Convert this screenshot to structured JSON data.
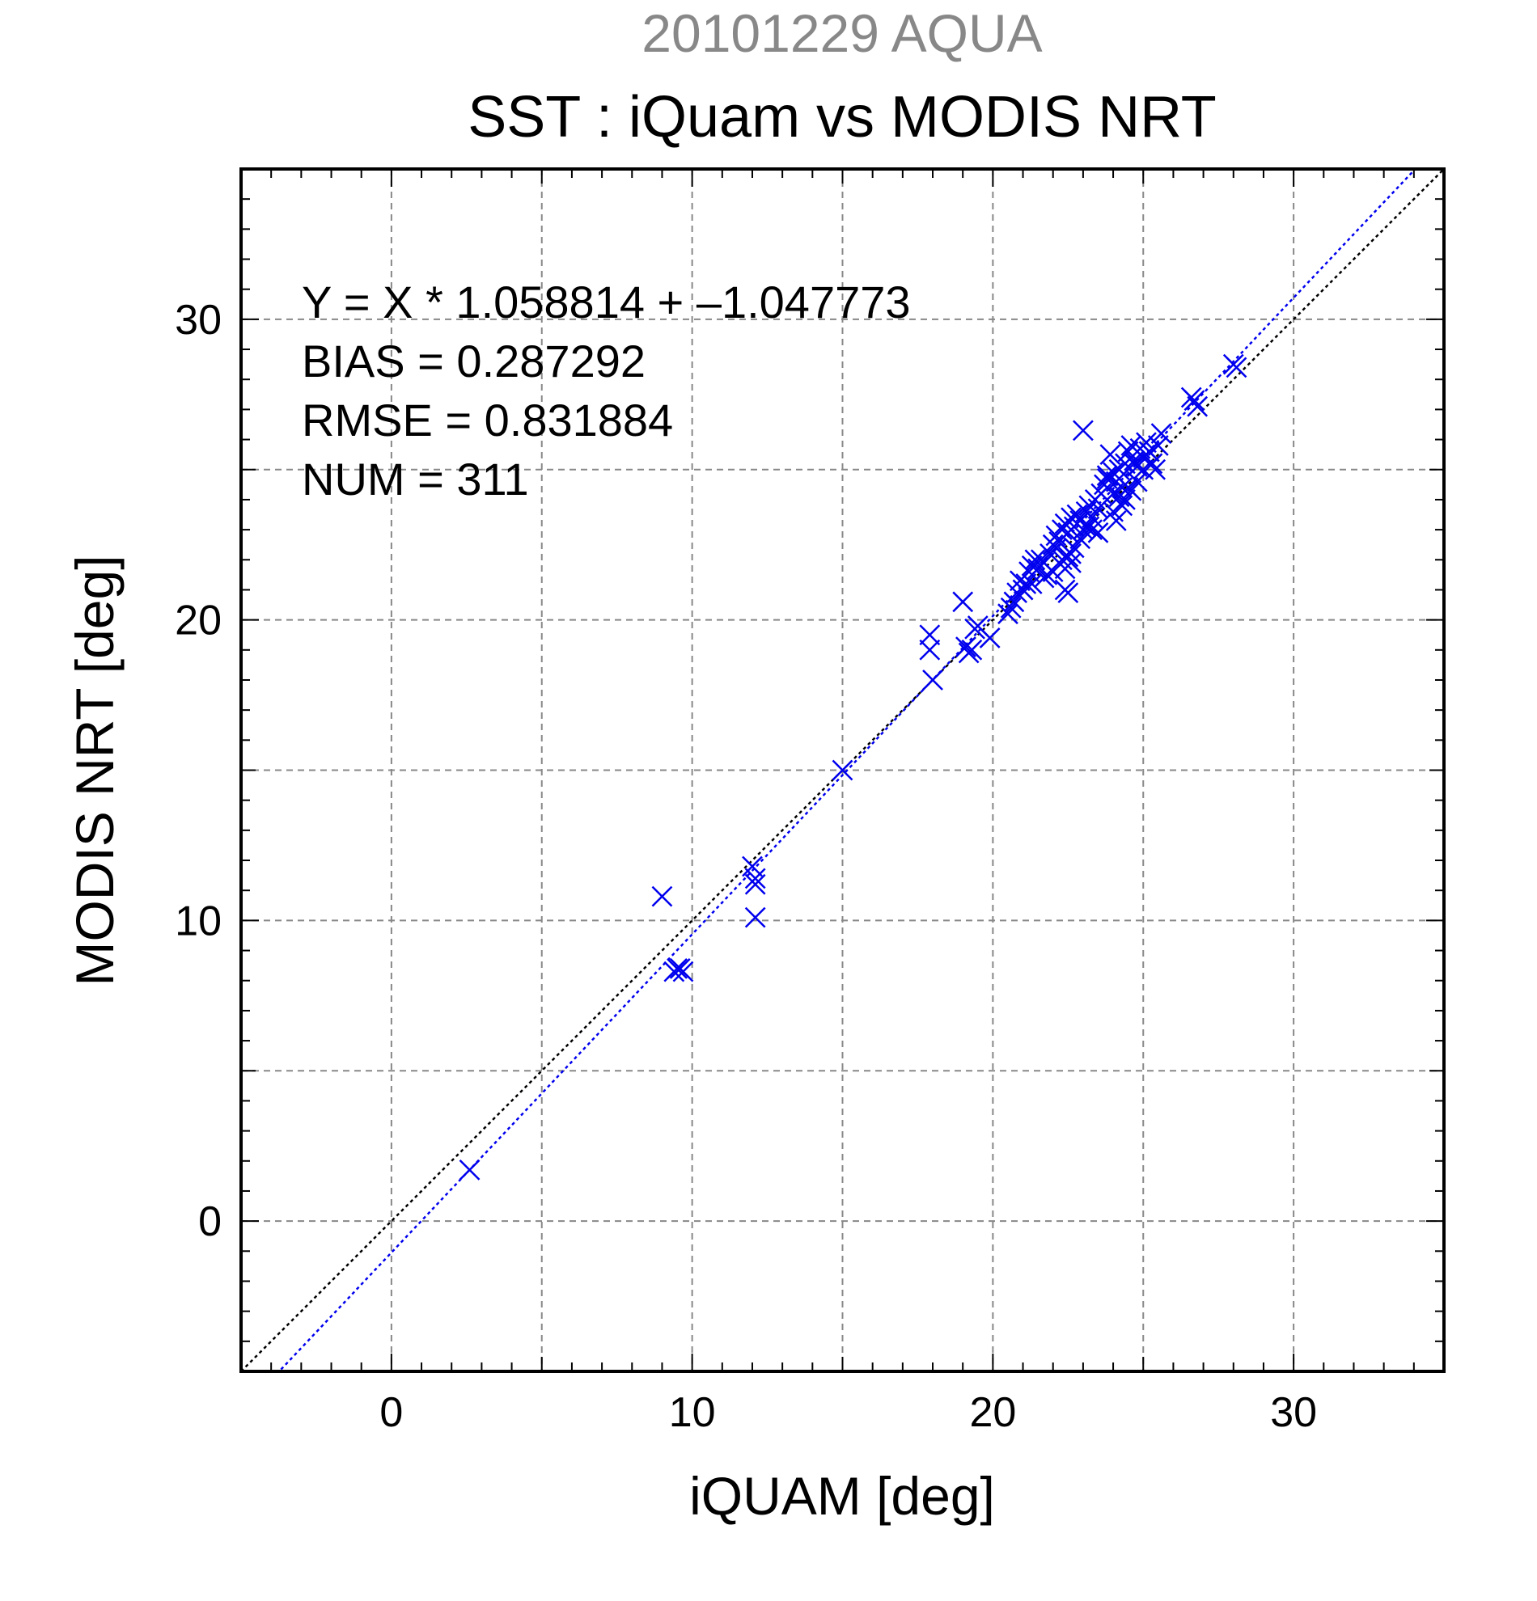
{
  "chart_data": {
    "type": "scatter",
    "supertitle": "20101229 AQUA",
    "title": "SST : iQuam vs MODIS NRT",
    "xlabel": "iQUAM [deg]",
    "ylabel": "MODIS NRT [deg]",
    "xlim": [
      -5,
      35
    ],
    "ylim": [
      -5,
      35
    ],
    "xticks": [
      0,
      10,
      20,
      30
    ],
    "yticks": [
      0,
      10,
      20,
      30
    ],
    "xtick_labels": [
      "0",
      "10",
      "20",
      "30"
    ],
    "ytick_labels": [
      "0",
      "10",
      "20",
      "30"
    ],
    "grid": true,
    "stats": [
      "Y = X * 1.058814 + –1.047773",
      "BIAS = 0.287292",
      "RMSE = 0.831884",
      "NUM = 311"
    ],
    "fit": {
      "slope": 1.058814,
      "intercept": -1.047773
    },
    "marker": "x",
    "colors": {
      "points": "#0000ee",
      "fit_line": "#0000ee",
      "identity_line": "#000000",
      "grid": "#888888",
      "supertitle": "#888888"
    },
    "points": {
      "x": [
        2.6,
        9.0,
        9.4,
        9.5,
        9.6,
        9.7,
        12.0,
        12.1,
        12.1,
        12.1,
        15.0,
        17.9,
        17.9,
        18.0,
        19.0,
        19.1,
        19.2,
        19.3,
        19.4,
        19.5,
        19.9,
        20.5,
        20.6,
        20.7,
        20.8,
        20.9,
        21.0,
        21.1,
        21.2,
        21.3,
        21.4,
        21.5,
        21.6,
        21.7,
        21.8,
        21.9,
        22.0,
        22.1,
        22.2,
        22.3,
        22.4,
        22.5,
        22.6,
        22.7,
        22.8,
        22.9,
        23.0,
        23.1,
        23.2,
        23.3,
        23.4,
        22.4,
        22.5,
        22.3,
        22.6,
        22.7,
        23.0,
        23.1,
        23.5,
        23.6,
        23.7,
        23.8,
        23.9,
        24.0,
        24.1,
        24.2,
        24.3,
        24.4,
        24.5,
        24.6,
        24.7,
        24.8,
        24.9,
        25.0,
        25.1,
        25.2,
        25.3,
        25.4,
        25.5,
        25.6,
        24.0,
        24.2,
        24.4,
        24.6,
        24.8,
        25.0,
        24.1,
        24.3,
        24.5,
        23.3,
        23.5,
        24.0,
        26.6,
        26.7,
        26.8,
        28.0,
        28.1,
        22.5,
        22.6,
        22.4,
        22.0,
        21.7,
        21.3,
        21.0,
        22.9,
        23.2,
        23.8,
        24.7,
        25.2
      ],
      "y": [
        1.7,
        10.8,
        8.3,
        8.4,
        8.4,
        8.3,
        11.8,
        11.4,
        11.2,
        10.1,
        15.0,
        19.5,
        19.0,
        18.0,
        20.6,
        19.1,
        18.9,
        19.0,
        19.7,
        19.8,
        19.4,
        20.2,
        20.4,
        20.6,
        20.9,
        21.3,
        21.0,
        21.2,
        21.6,
        21.8,
        22.0,
        21.7,
        22.0,
        21.9,
        21.5,
        22.2,
        22.5,
        22.8,
        22.6,
        23.0,
        23.2,
        22.9,
        23.4,
        23.1,
        23.5,
        23.3,
        26.3,
        23.6,
        23.8,
        23.4,
        24.0,
        21.0,
        20.9,
        22.0,
        22.2,
        22.4,
        23.0,
        23.1,
        23.7,
        24.2,
        24.5,
        24.8,
        25.5,
        24.9,
        24.6,
        25.0,
        24.4,
        25.2,
        25.6,
        25.8,
        25.3,
        25.1,
        25.7,
        25.4,
        25.9,
        25.6,
        25.2,
        25.0,
        25.8,
        26.2,
        24.2,
        24.1,
        24.0,
        24.3,
        24.6,
        25.0,
        23.3,
        23.8,
        24.4,
        23.0,
        22.9,
        23.6,
        27.4,
        27.3,
        27.1,
        28.5,
        28.4,
        22.1,
        21.9,
        21.7,
        21.6,
        21.4,
        21.2,
        21.0,
        22.7,
        23.1,
        24.7,
        25.2,
        25.6
      ]
    }
  }
}
